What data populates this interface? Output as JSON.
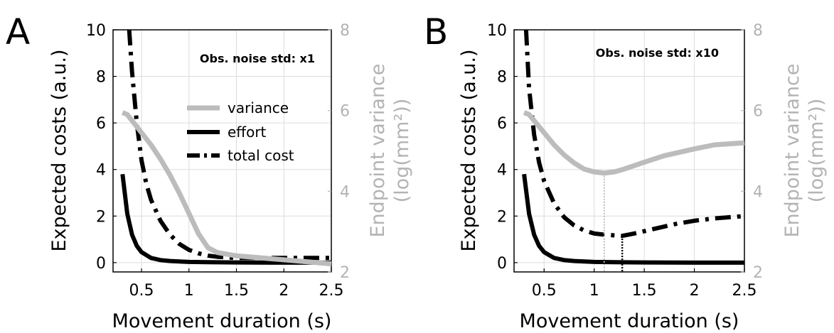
{
  "colors": {
    "effort": "#000000",
    "total": "#000000",
    "variance": "#bcbcbc",
    "right_axis": "#b3b3b3",
    "grid": "#dcdcdc"
  },
  "legend": {
    "variance": "variance",
    "effort": "effort",
    "total": "total cost"
  },
  "chart_data": [
    {
      "type": "line",
      "panel_label": "A",
      "annotation": "Obs. noise std: x1",
      "xlabel": "Movement duration (s)",
      "ylabel": "Expected costs (a.u.)",
      "ylabel_right_line1": "Endpoint variance",
      "ylabel_right_line2": "(log(mm²))",
      "xlim": [
        0.2,
        2.5
      ],
      "ylim": [
        -0.4,
        10
      ],
      "ylim_right": [
        2,
        8
      ],
      "xticks": [
        0.5,
        1,
        1.5,
        2,
        2.5
      ],
      "xtick_labels": [
        "0.5",
        "1",
        "1.5",
        "2",
        "2.5"
      ],
      "yticks": [
        0,
        2,
        4,
        6,
        8,
        10
      ],
      "ytick_labels": [
        "0",
        "2",
        "4",
        "6",
        "8",
        "10"
      ],
      "yticks_right": [
        2,
        4,
        6,
        8
      ],
      "ytick_right_labels": [
        "2",
        "4",
        "6",
        "8"
      ],
      "grid": true,
      "legend_position": "center",
      "series": [
        {
          "name": "effort",
          "axis": "left",
          "style": "solid",
          "x": [
            0.3,
            0.35,
            0.4,
            0.45,
            0.5,
            0.6,
            0.7,
            0.8,
            1.0,
            1.2,
            1.5,
            2.0,
            2.5
          ],
          "y": [
            3.8,
            2.1,
            1.2,
            0.72,
            0.45,
            0.2,
            0.11,
            0.07,
            0.03,
            0.02,
            0.01,
            0.0,
            0.0
          ]
        },
        {
          "name": "total cost",
          "axis": "left",
          "style": "dashdot",
          "x": [
            0.37,
            0.4,
            0.45,
            0.5,
            0.55,
            0.6,
            0.7,
            0.8,
            0.9,
            1.0,
            1.1,
            1.2,
            1.3,
            1.5,
            2.0,
            2.5
          ],
          "y": [
            10.0,
            8.2,
            6.0,
            4.4,
            3.4,
            2.7,
            1.8,
            1.2,
            0.8,
            0.55,
            0.4,
            0.3,
            0.25,
            0.2,
            0.2,
            0.2
          ]
        },
        {
          "name": "variance",
          "axis": "right",
          "style": "solid",
          "x": [
            0.3,
            0.35,
            0.4,
            0.5,
            0.6,
            0.7,
            0.8,
            0.9,
            1.0,
            1.1,
            1.2,
            1.3,
            1.5,
            2.0,
            2.5
          ],
          "y": [
            5.95,
            5.9,
            5.75,
            5.45,
            5.15,
            4.8,
            4.4,
            3.95,
            3.45,
            2.95,
            2.6,
            2.48,
            2.4,
            2.3,
            2.2
          ]
        }
      ],
      "markers": []
    },
    {
      "type": "line",
      "panel_label": "B",
      "annotation": "Obs. noise std: x10",
      "xlabel": "Movement duration (s)",
      "ylabel": "Expected costs (a.u.)",
      "ylabel_right_line1": "Endpoint variance",
      "ylabel_right_line2": "(log(mm²))",
      "xlim": [
        0.2,
        2.5
      ],
      "ylim": [
        -0.4,
        10
      ],
      "ylim_right": [
        2,
        8
      ],
      "xticks": [
        0.5,
        1,
        1.5,
        2,
        2.5
      ],
      "xtick_labels": [
        "0.5",
        "1",
        "1.5",
        "2",
        "2.5"
      ],
      "yticks": [
        0,
        2,
        4,
        6,
        8,
        10
      ],
      "ytick_labels": [
        "0",
        "2",
        "4",
        "6",
        "8",
        "10"
      ],
      "yticks_right": [
        2,
        4,
        6,
        8
      ],
      "ytick_right_labels": [
        "2",
        "4",
        "6",
        "8"
      ],
      "grid": true,
      "series": [
        {
          "name": "effort",
          "axis": "left",
          "style": "solid",
          "x": [
            0.3,
            0.35,
            0.4,
            0.45,
            0.5,
            0.6,
            0.7,
            0.8,
            1.0,
            1.2,
            1.5,
            2.0,
            2.5
          ],
          "y": [
            3.8,
            2.1,
            1.2,
            0.72,
            0.45,
            0.2,
            0.11,
            0.07,
            0.03,
            0.02,
            0.01,
            0.0,
            0.0
          ]
        },
        {
          "name": "total cost",
          "axis": "left",
          "style": "dashdot",
          "x": [
            0.32,
            0.35,
            0.4,
            0.45,
            0.5,
            0.6,
            0.7,
            0.8,
            0.9,
            1.0,
            1.1,
            1.2,
            1.28,
            1.4,
            1.6,
            1.8,
            2.0,
            2.2,
            2.5
          ],
          "y": [
            10.0,
            7.5,
            5.5,
            4.3,
            3.5,
            2.55,
            1.95,
            1.6,
            1.38,
            1.25,
            1.2,
            1.17,
            1.15,
            1.25,
            1.45,
            1.65,
            1.8,
            1.9,
            2.0
          ]
        },
        {
          "name": "variance",
          "axis": "right",
          "style": "solid",
          "x": [
            0.3,
            0.35,
            0.4,
            0.5,
            0.6,
            0.7,
            0.8,
            0.9,
            1.0,
            1.1,
            1.2,
            1.3,
            1.5,
            1.7,
            2.0,
            2.2,
            2.5
          ],
          "y": [
            5.95,
            5.9,
            5.75,
            5.45,
            5.15,
            4.9,
            4.7,
            4.55,
            4.48,
            4.45,
            4.48,
            4.55,
            4.72,
            4.88,
            5.05,
            5.15,
            5.2
          ]
        }
      ],
      "markers": [
        {
          "x": 1.1,
          "y_right": 4.45,
          "color": "#bcbcbc",
          "style": "dotted"
        },
        {
          "x": 1.28,
          "y": 1.15,
          "color": "#000000",
          "style": "dotted"
        }
      ]
    }
  ]
}
